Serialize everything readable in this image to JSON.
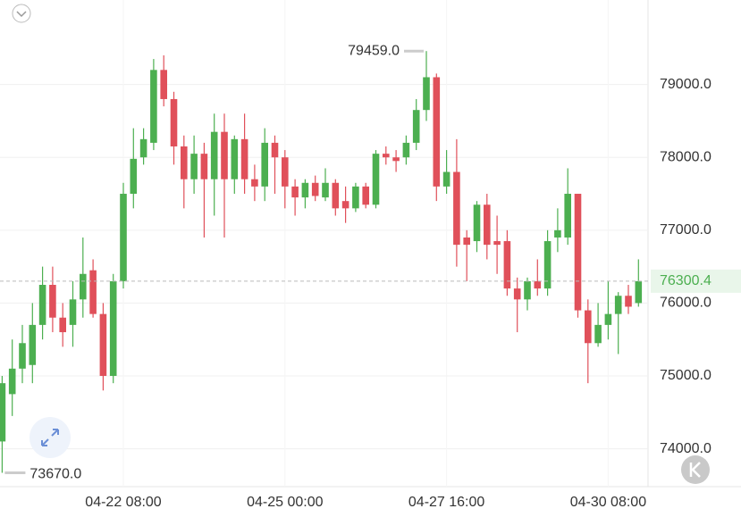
{
  "chart_data": {
    "type": "candlestick",
    "categories": [
      null,
      null,
      null,
      null,
      null,
      null,
      null,
      null,
      null,
      null,
      null,
      null,
      "04-22 08:00",
      null,
      null,
      null,
      null,
      null,
      null,
      null,
      null,
      null,
      null,
      null,
      null,
      null,
      null,
      null,
      "04-25 00:00",
      null,
      null,
      null,
      null,
      null,
      null,
      null,
      null,
      null,
      null,
      null,
      null,
      null,
      null,
      null,
      "04-27 16:00",
      null,
      null,
      null,
      null,
      null,
      null,
      null,
      null,
      null,
      null,
      null,
      null,
      null,
      null,
      null,
      "04-30 08:00",
      null,
      null,
      null
    ],
    "open": [
      74100,
      74750,
      75100,
      75150,
      75700,
      76250,
      75800,
      75700,
      76050,
      76450,
      75850,
      75000,
      76300,
      77500,
      78000,
      78200,
      79200,
      78800,
      78150,
      77700,
      78050,
      77700,
      78350,
      77700,
      78250,
      77700,
      77600,
      78200,
      78000,
      77600,
      77450,
      77650,
      77450,
      77650,
      77400,
      77300,
      77600,
      77350,
      78050,
      78000,
      78000,
      78200,
      78650,
      79100,
      77600,
      77800,
      76900,
      76850,
      77350,
      76850,
      76850,
      76200,
      76050,
      76300,
      76200,
      76900,
      76900,
      77500,
      75900,
      75450,
      75700,
      75850,
      76100,
      76000
    ],
    "high": [
      75000,
      75500,
      75700,
      76000,
      76500,
      76500,
      76000,
      76300,
      76900,
      76600,
      76000,
      76400,
      77650,
      78400,
      78400,
      79350,
      79400,
      78900,
      78300,
      78300,
      78200,
      78600,
      78600,
      78300,
      78600,
      77900,
      78400,
      78300,
      78100,
      77700,
      77700,
      77750,
      77850,
      77700,
      77600,
      77650,
      77650,
      78100,
      78150,
      78100,
      78300,
      78800,
      79459,
      79150,
      78100,
      78250,
      77000,
      77400,
      77500,
      77200,
      77000,
      76350,
      76350,
      76600,
      77000,
      77300,
      77850,
      77500,
      76050,
      76000,
      76300,
      76150,
      76250,
      76600
    ],
    "low": [
      73670,
      74450,
      74900,
      74900,
      75500,
      75600,
      75400,
      75400,
      75800,
      75800,
      74800,
      74900,
      76200,
      77300,
      77900,
      78100,
      78700,
      77900,
      77300,
      77500,
      76900,
      77200,
      76900,
      77500,
      77500,
      77400,
      77400,
      77500,
      77300,
      77200,
      77300,
      77400,
      77400,
      77200,
      77100,
      77250,
      77300,
      77300,
      77900,
      77800,
      77900,
      78100,
      78500,
      77400,
      77500,
      76500,
      76300,
      76700,
      76600,
      76400,
      76100,
      75600,
      75900,
      76100,
      76100,
      76700,
      76800,
      75800,
      74900,
      75400,
      75500,
      75300,
      75850,
      75950
    ],
    "close": [
      74900,
      75100,
      75450,
      75700,
      76250,
      75800,
      75600,
      76050,
      76400,
      75850,
      75000,
      76300,
      77500,
      77980,
      78250,
      79200,
      78800,
      78150,
      77700,
      78050,
      77700,
      78350,
      77700,
      78250,
      77700,
      77600,
      78200,
      78000,
      77600,
      77450,
      77650,
      77470,
      77650,
      77300,
      77300,
      77600,
      77350,
      78050,
      78000,
      77950,
      78200,
      78650,
      79100,
      77600,
      77800,
      76800,
      76800,
      77350,
      76800,
      76800,
      76200,
      76050,
      76300,
      76200,
      76850,
      77000,
      77500,
      75900,
      75450,
      75700,
      75850,
      76100,
      75950,
      76300.4
    ],
    "up_color": "#4caf50",
    "down_color": "#e0505a",
    "ylim": [
      73480,
      80160
    ],
    "yticks": [
      {
        "value": 74000,
        "label": "74000.0"
      },
      {
        "value": 75000,
        "label": "75000.0"
      },
      {
        "value": 76000,
        "label": "76000.0"
      },
      {
        "value": 77000,
        "label": "77000.0"
      },
      {
        "value": 78000,
        "label": "78000.0"
      },
      {
        "value": 79000,
        "label": "79000.0"
      }
    ],
    "grid": true,
    "high_marker": {
      "value": 79459,
      "label": "79459.0"
    },
    "low_marker": {
      "value": 73670,
      "label": "73670.0"
    },
    "last_price": 76300.4
  }
}
